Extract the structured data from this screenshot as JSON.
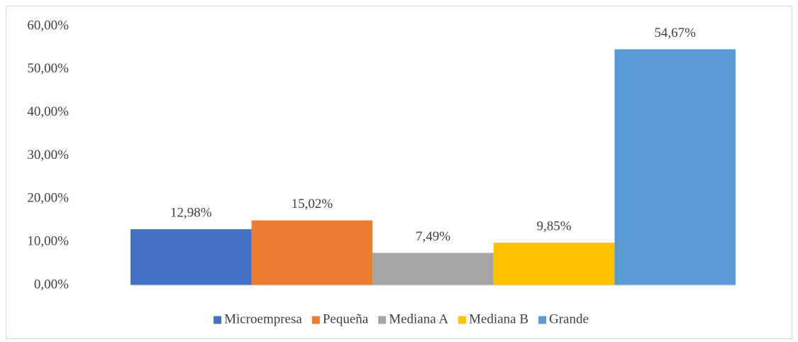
{
  "chart_data": {
    "type": "bar",
    "categories": [
      null
    ],
    "series": [
      {
        "name": "Microempresa",
        "color": "#4472c4",
        "values": [
          12.98
        ],
        "value_labels": [
          "12,98%"
        ]
      },
      {
        "name": "Pequeña",
        "color": "#ed7d31",
        "values": [
          15.02
        ],
        "value_labels": [
          "15,02%"
        ]
      },
      {
        "name": "Mediana A",
        "color": "#a5a5a5",
        "values": [
          7.49
        ],
        "value_labels": [
          "7,49%"
        ]
      },
      {
        "name": "Mediana B",
        "color": "#ffc000",
        "values": [
          9.85
        ],
        "value_labels": [
          "9,85%"
        ]
      },
      {
        "name": "Grande",
        "color": "#5b9bd5",
        "values": [
          54.67
        ],
        "value_labels": [
          "54,67%"
        ]
      }
    ],
    "ylim": [
      0,
      60
    ],
    "yticks": [
      {
        "value": 0,
        "label": "0,00%"
      },
      {
        "value": 10,
        "label": "10,00%"
      },
      {
        "value": 20,
        "label": "20,00%"
      },
      {
        "value": 30,
        "label": "30,00%"
      },
      {
        "value": 40,
        "label": "40,00%"
      },
      {
        "value": 50,
        "label": "50,00%"
      },
      {
        "value": 60,
        "label": "60,00%"
      }
    ],
    "grid": false,
    "legend": "bottom"
  }
}
